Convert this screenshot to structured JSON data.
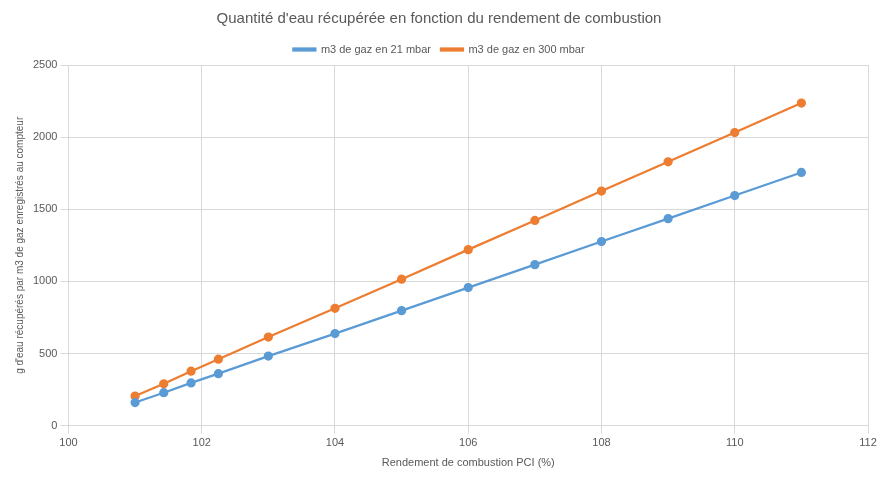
{
  "chart_data": {
    "type": "line",
    "title": "Quantité d'eau récupérée en fonction du rendement de combustion",
    "x_label": "Rendement de combustion PCI (%)",
    "y_label": "g d'eau récupérés par m3 de gaz enregistrés au compteur",
    "x": [
      101,
      101.43,
      101.84,
      102.25,
      103,
      104,
      105,
      106,
      107,
      108,
      109,
      110,
      111
    ],
    "series": [
      {
        "name": "m3 de gaz en 21 mbar",
        "color": "#5b9bd5",
        "marker": "circle",
        "values": [
          160,
          228,
          296,
          360,
          482,
          638,
          797,
          957,
          1116,
          1276,
          1435,
          1595,
          1755
        ]
      },
      {
        "name": "m3 de gaz en 300 mbar",
        "color": "#ed7d31",
        "marker": "circle",
        "values": [
          205,
          290,
          377,
          460,
          614,
          813,
          1015,
          1220,
          1422,
          1626,
          1829,
          2032,
          2236
        ]
      }
    ],
    "xlim": [
      100,
      112
    ],
    "xticks": [
      100,
      102,
      104,
      106,
      108,
      110,
      112
    ],
    "ylim": [
      0,
      2500
    ],
    "yticks": [
      0,
      500,
      1000,
      1500,
      2000,
      2500
    ],
    "grid": true,
    "legend": "top"
  }
}
